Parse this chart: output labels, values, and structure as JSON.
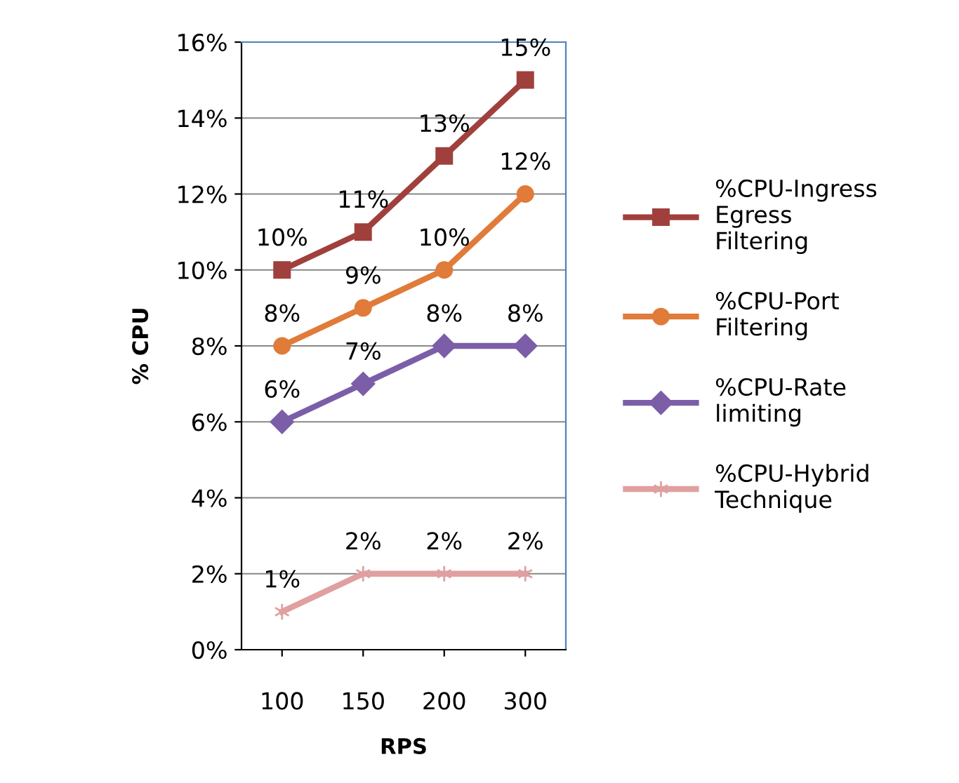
{
  "chart_data": {
    "type": "line",
    "xlabel": "RPS",
    "ylabel": "% CPU",
    "categories": [
      "100",
      "150",
      "200",
      "300"
    ],
    "ylim": [
      0,
      16
    ],
    "yticks": [
      {
        "value": 0,
        "label": "0%"
      },
      {
        "value": 2,
        "label": "2%"
      },
      {
        "value": 4,
        "label": "4%"
      },
      {
        "value": 6,
        "label": "6%"
      },
      {
        "value": 8,
        "label": "8%"
      },
      {
        "value": 10,
        "label": "10%"
      },
      {
        "value": 12,
        "label": "12%"
      },
      {
        "value": 14,
        "label": "14%"
      },
      {
        "value": 16,
        "label": "16%"
      }
    ],
    "grid": "y",
    "legend": "right",
    "series": [
      {
        "name": "%CPU-Ingress\nEgress\nFiltering",
        "color": "#a0403c",
        "marker": "square",
        "values": [
          10,
          11,
          13,
          15
        ],
        "value_labels": [
          "10%",
          "11%",
          "13%",
          "15%"
        ]
      },
      {
        "name": "%CPU-Port\nFiltering",
        "color": "#e07b39",
        "marker": "circle",
        "values": [
          8,
          9,
          10,
          12
        ],
        "value_labels": [
          "8%",
          "9%",
          "10%",
          "12%"
        ]
      },
      {
        "name": "%CPU-Rate\nlimiting",
        "color": "#7b5ea7",
        "marker": "diamond",
        "values": [
          6,
          7,
          8,
          8
        ],
        "value_labels": [
          "6%",
          "7%",
          "8%",
          "8%"
        ]
      },
      {
        "name": "%CPU-Hybrid\nTechnique",
        "color": "#e0a0a0",
        "marker": "cross",
        "values": [
          1,
          2,
          2,
          2
        ],
        "value_labels": [
          "1%",
          "2%",
          "2%",
          "2%"
        ]
      }
    ]
  }
}
